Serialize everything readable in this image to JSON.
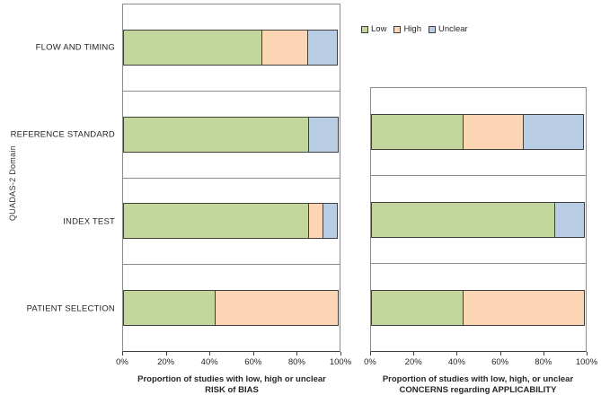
{
  "figure": {
    "y_axis_title": "QUADAS-2 Domain"
  },
  "legend": {
    "items": [
      {
        "label": "Low",
        "color": "#c3d69b"
      },
      {
        "label": "High",
        "color": "#fcd5b4"
      },
      {
        "label": "Unclear",
        "color": "#b8cce4"
      }
    ]
  },
  "colors": {
    "low": "#c3d69b",
    "high": "#fcd5b4",
    "unclear": "#b8cce4",
    "bar_border": "#404040",
    "grid": "#8c8c8c"
  },
  "chart_data": [
    {
      "type": "bar",
      "stacked": true,
      "orientation": "horizontal",
      "categories": [
        "FLOW AND TIMING",
        "REFERENCE STANDARD",
        "INDEX TEST",
        "PATIENT SELECTION"
      ],
      "series": [
        {
          "name": "Low",
          "color": "#c3d69b",
          "values": [
            64.3,
            85.7,
            85.7,
            42.9
          ]
        },
        {
          "name": "High",
          "color": "#fcd5b4",
          "values": [
            21.4,
            0,
            7.1,
            57.1
          ]
        },
        {
          "name": "Unclear",
          "color": "#b8cce4",
          "values": [
            14.3,
            14.3,
            7.1,
            0
          ]
        }
      ],
      "xlim": [
        0,
        100
      ],
      "x_ticks": [
        "0%",
        "20%",
        "40%",
        "60%",
        "80%",
        "100%"
      ],
      "grid": true,
      "legend_position": "top-right",
      "xlabel_line1": "Proportion of studies with low, high or unclear",
      "xlabel_line2": "RISK of BIAS",
      "show_category_labels": true
    },
    {
      "type": "bar",
      "stacked": true,
      "orientation": "horizontal",
      "categories": [
        "REFERENCE STANDARD",
        "INDEX TEST",
        "PATIENT SELECTION"
      ],
      "series": [
        {
          "name": "Low",
          "color": "#c3d69b",
          "values": [
            42.9,
            85.7,
            42.9
          ]
        },
        {
          "name": "High",
          "color": "#fcd5b4",
          "values": [
            28.6,
            0,
            57.1
          ]
        },
        {
          "name": "Unclear",
          "color": "#b8cce4",
          "values": [
            28.6,
            14.3,
            0
          ]
        }
      ],
      "xlim": [
        0,
        100
      ],
      "x_ticks": [
        "0%",
        "20%",
        "40%",
        "60%",
        "80%",
        "100%"
      ],
      "grid": true,
      "xlabel_line1": "Proportion of studies with low, high, or unclear",
      "xlabel_line2": "CONCERNS regarding APPLICABILITY",
      "show_category_labels": false
    }
  ]
}
